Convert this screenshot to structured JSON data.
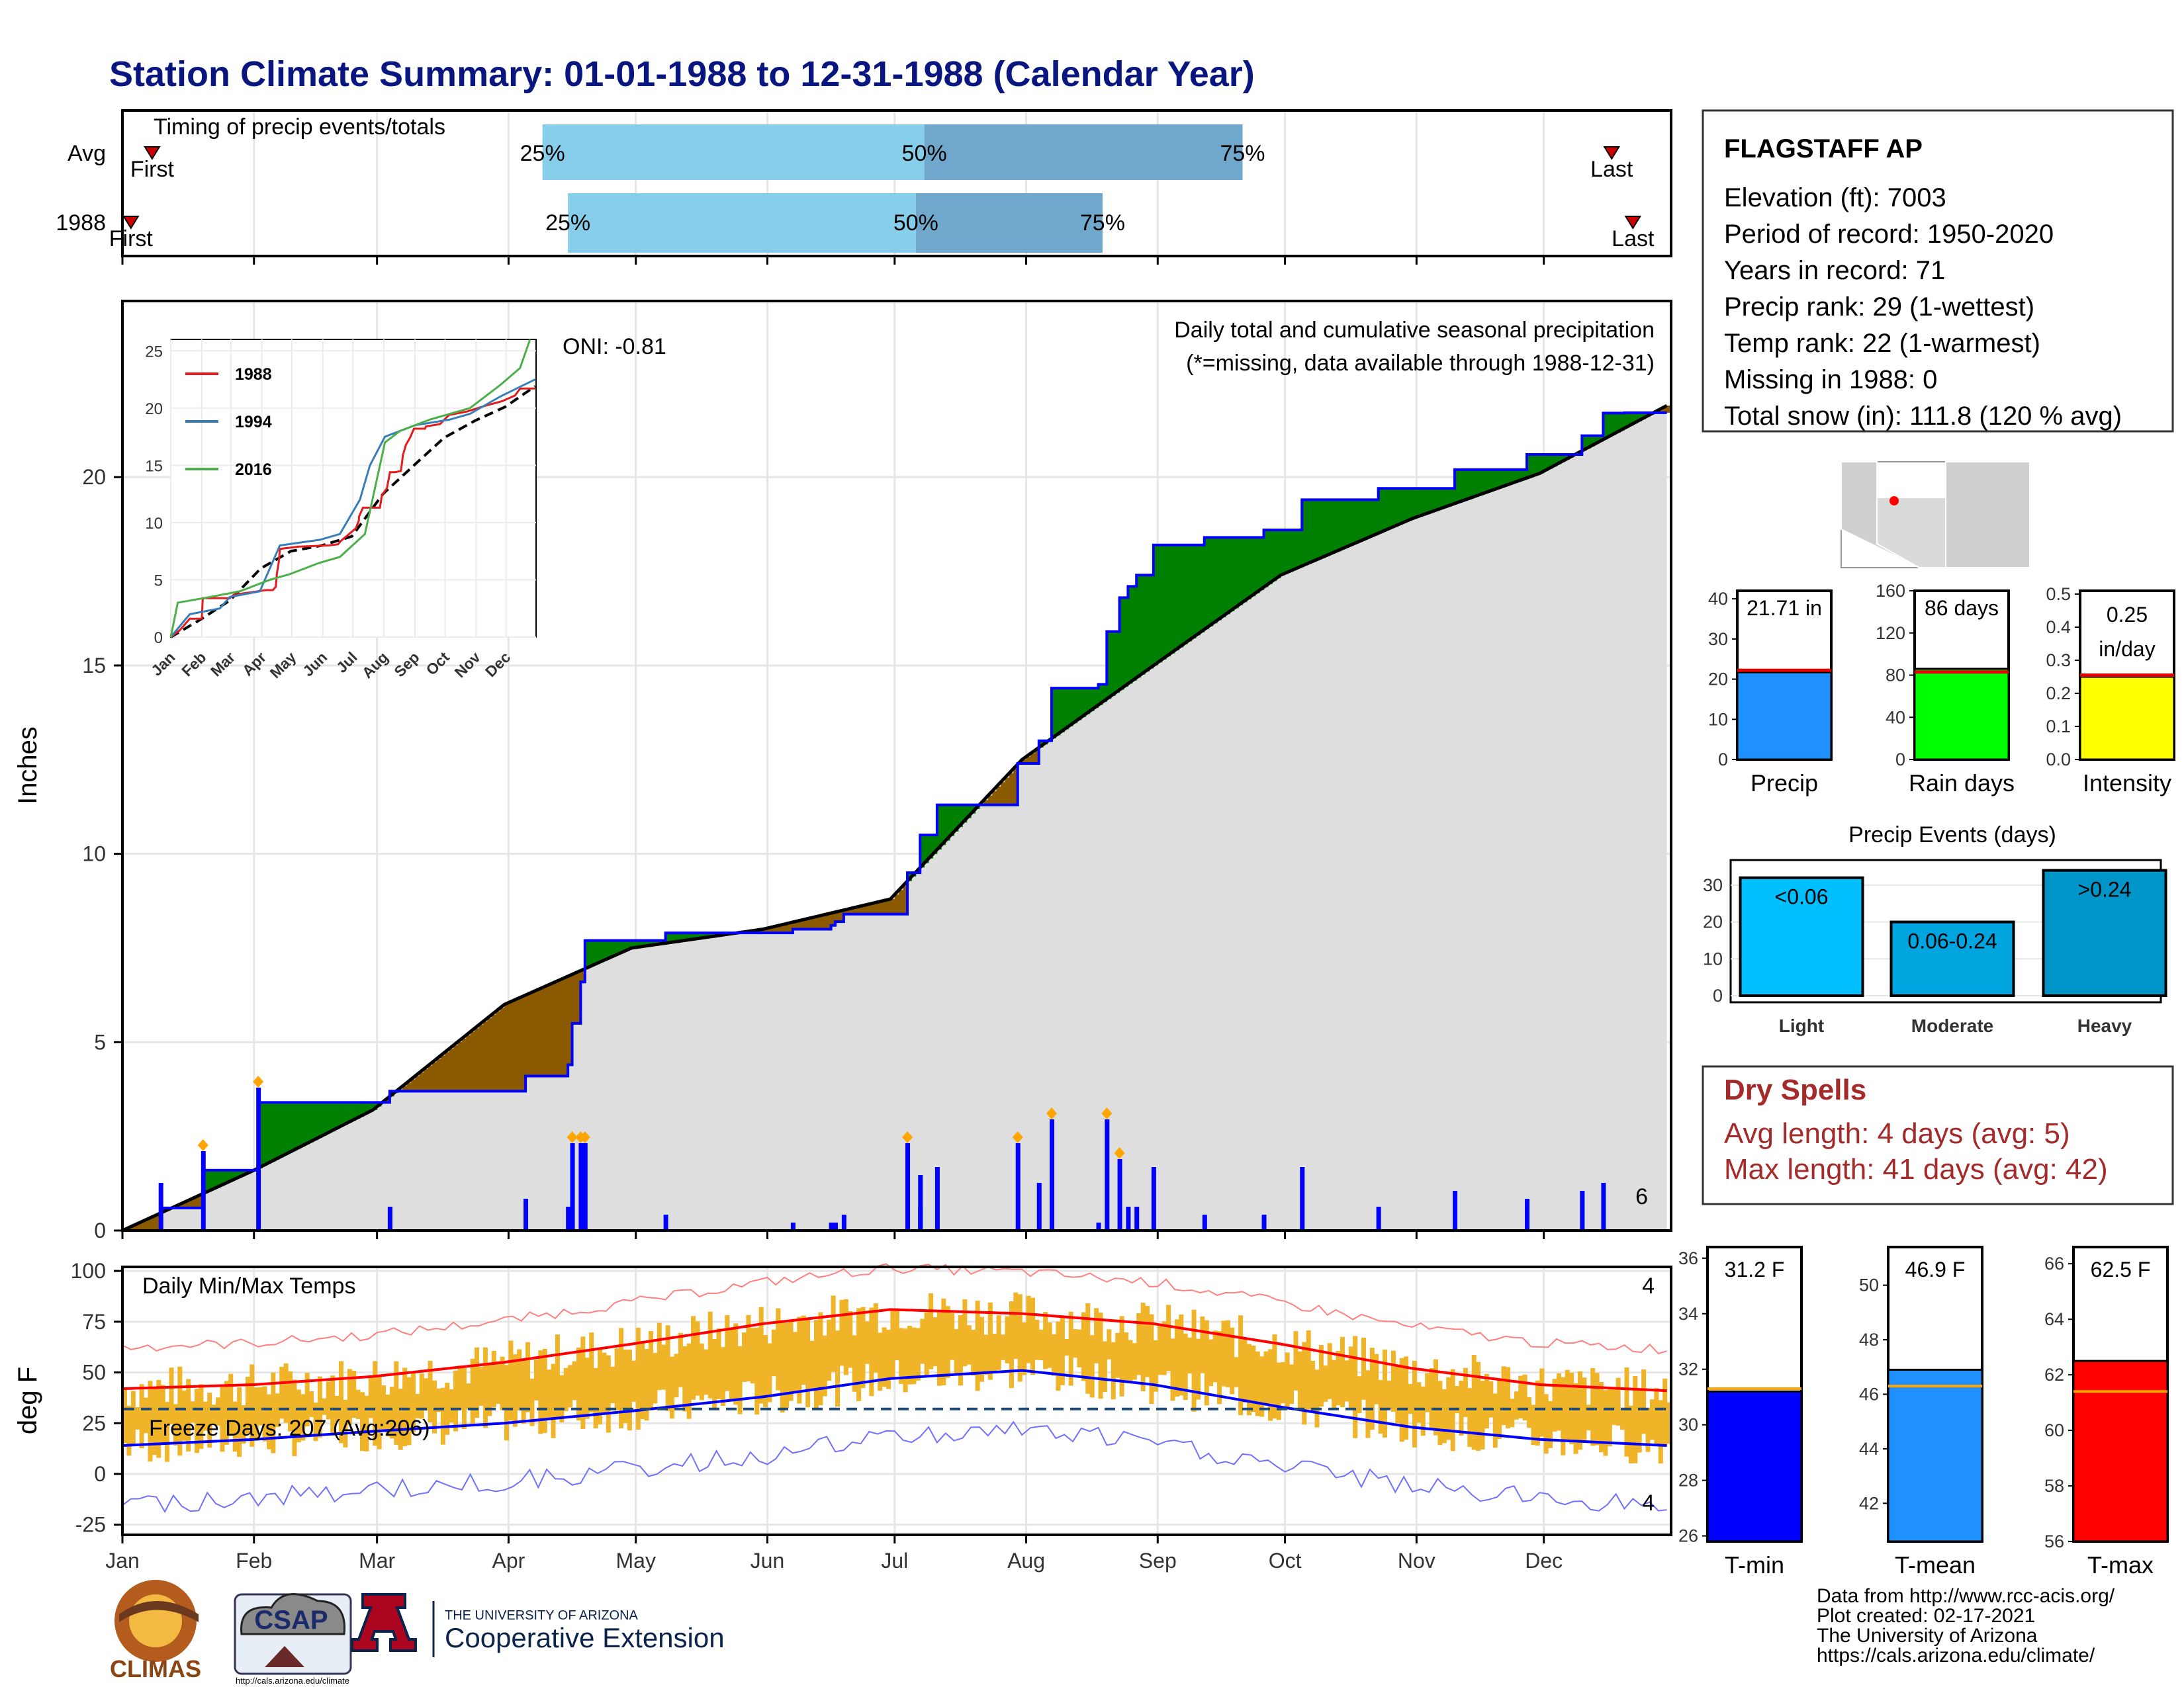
{
  "title": "Station Climate Summary: 01-01-1988 to 12-31-1988 (Calendar Year)",
  "months": [
    "Jan",
    "Feb",
    "Mar",
    "Apr",
    "May",
    "Jun",
    "Jul",
    "Aug",
    "Sep",
    "Oct",
    "Nov",
    "Dec"
  ],
  "colors": {
    "title": "#0a1680",
    "green": "#008000",
    "brown": "#8b5a00",
    "blue_line": "#0000ff",
    "gray_fill": "#dedede",
    "temp_bar": "#f0b428",
    "tmax": "#ff0000",
    "tmin": "#0000ff"
  },
  "timing": {
    "title": "Timing of precip events/totals",
    "rows": [
      {
        "label": "Avg",
        "first": "First",
        "last": "Last",
        "p25": "25%",
        "p50": "50%",
        "p75": "75%",
        "first_doy": 8,
        "p25_doy": 100,
        "p50_doy": 190,
        "p75_doy": 265,
        "last_doy": 352
      },
      {
        "label": "1988",
        "first": "First",
        "last": "Last",
        "p25": "25%",
        "p50": "50%",
        "p75": "75%",
        "first_doy": 3,
        "p25_doy": 106,
        "p50_doy": 188,
        "p75_doy": 232,
        "last_doy": 357
      }
    ]
  },
  "precip_panel": {
    "header": "Daily total and cumulative seasonal precipitation",
    "note": "(*=missing, data available through 1988-12-31)",
    "oni": "ONI: -0.81",
    "ylabel": "Inches",
    "yticks": [
      "0",
      "5",
      "10",
      "15",
      "20"
    ],
    "corner_count": "6"
  },
  "inset": {
    "yticks": [
      "0",
      "5",
      "10",
      "15",
      "20",
      "25"
    ],
    "xticks": [
      "Jan",
      "Feb",
      "Mar",
      "Apr",
      "May",
      "Jun",
      "Jul",
      "Aug",
      "Sep",
      "Oct",
      "Nov",
      "Dec"
    ],
    "legend": [
      {
        "name": "1988",
        "color": "#e41a1c"
      },
      {
        "name": "1994",
        "color": "#377eb8"
      },
      {
        "name": "2016",
        "color": "#4daf4a"
      }
    ]
  },
  "temp_panel": {
    "title": "Daily Min/Max Temps",
    "ylabel": "deg F",
    "yticks": [
      "100",
      "75",
      "50",
      "25",
      "0",
      "-25"
    ],
    "freeze": "Freeze Days: 207 (Avg:206)",
    "count_top": "4",
    "count_bottom": "4"
  },
  "station": {
    "name": "FLAGSTAFF AP",
    "lines": [
      "Elevation (ft): 7003",
      "Period of record: 1950-2020",
      "Years in record: 71",
      "Precip rank: 29 (1-wettest)",
      "Temp rank: 22 (1-warmest)",
      "Missing in 1988: 0",
      "Total snow (in): 111.8 (120 % avg)"
    ]
  },
  "mini_bars": [
    {
      "label": "Precip",
      "value_text": "21.71 in",
      "value": 21.71,
      "avg": 22.2,
      "ymax": 42,
      "ticks": [
        "40",
        "30",
        "20",
        "10",
        "0"
      ],
      "tickvals": [
        40,
        30,
        20,
        10,
        0
      ],
      "color": "#1e90ff"
    },
    {
      "label": "Rain days",
      "value_text": "86 days",
      "value": 86,
      "avg": 83,
      "ymax": 160,
      "ticks": [
        "160",
        "120",
        "80",
        "40",
        "0"
      ],
      "tickvals": [
        160,
        120,
        80,
        40,
        0
      ],
      "color": "#00ff00"
    },
    {
      "label": "Intensity",
      "value_text": "0.25 in/day",
      "value": 0.25,
      "avg": 0.255,
      "ymax": 0.51,
      "ticks": [
        "0.5",
        "0.4",
        "0.3",
        "0.2",
        "0.1",
        "0.0"
      ],
      "tickvals": [
        0.5,
        0.4,
        0.3,
        0.2,
        0.1,
        0.0
      ],
      "color": "#ffff00"
    }
  ],
  "events": {
    "title": "Precip Events (days)",
    "yticks": [
      "30",
      "20",
      "10",
      "0"
    ],
    "bars": [
      {
        "cat": "Light",
        "label": "<0.06",
        "value": 32,
        "color": "#00bfff"
      },
      {
        "cat": "Moderate",
        "label": "0.06-0.24",
        "value": 20,
        "color": "#00a5e0"
      },
      {
        "cat": "Heavy",
        "label": ">0.24",
        "value": 34,
        "color": "#0095c8"
      }
    ]
  },
  "dry_spells": {
    "title": "Dry Spells",
    "avg": "Avg length: 4 days (avg: 5)",
    "max": "Max length: 41 days (avg: 42)"
  },
  "temp_bars": [
    {
      "label": "T-min",
      "value_text": "31.2 F",
      "value": 31.2,
      "avg": 31.3,
      "ymin": 25.8,
      "ymax": 36.4,
      "ticks": [
        "36",
        "34",
        "32",
        "30",
        "28",
        "26"
      ],
      "tickvals": [
        36,
        34,
        32,
        30,
        28,
        26
      ],
      "color": "#0000ff"
    },
    {
      "label": "T-mean",
      "value_text": "46.9 F",
      "value": 46.9,
      "avg": 46.3,
      "ymin": 40.6,
      "ymax": 51.4,
      "ticks": [
        "50",
        "48",
        "46",
        "44",
        "42"
      ],
      "tickvals": [
        50,
        48,
        46,
        44,
        42
      ],
      "color": "#1e90ff"
    },
    {
      "label": "T-max",
      "value_text": "62.5 F",
      "value": 62.5,
      "avg": 61.4,
      "ymin": 56,
      "ymax": 66.6,
      "ticks": [
        "66",
        "64",
        "62",
        "60",
        "58",
        "56"
      ],
      "tickvals": [
        66,
        64,
        62,
        60,
        58,
        56
      ],
      "color": "#ff0000"
    }
  ],
  "footer": {
    "lines": [
      "Data from http://www.rcc-acis.org/",
      "Plot created: 02-17-2021",
      "The University of Arizona",
      "https://cals.arizona.edu/climate/"
    ],
    "logo_climas": "CLIMAS",
    "logo_csap": "CSAP",
    "logo_csap_url": "http://cals.arizona.edu/climate",
    "ua_small": "THE UNIVERSITY OF ARIZONA",
    "ua_big": "Cooperative Extension"
  },
  "chart_data": [
    {
      "type": "area",
      "title": "Daily total and cumulative seasonal precipitation",
      "ylabel": "Inches",
      "ylim": [
        0,
        24
      ],
      "x_unit": "day of year 1988",
      "series": [
        {
          "name": "1988",
          "x": [
            1,
            10,
            20,
            32,
            33,
            60,
            64,
            96,
            103,
            106,
            107,
            109,
            110,
            129,
            159,
            168,
            169,
            171,
            186,
            189,
            189,
            193,
            202,
            210,
            212,
            217,
            220,
            225,
            231,
            233,
            236,
            238,
            240,
            244,
            255,
            256,
            270,
            279,
            297,
            315,
            332,
            345,
            350,
            355,
            361,
            365
          ],
          "y": [
            0,
            0.6,
            1.6,
            1.6,
            3.4,
            3.4,
            3.7,
            4.1,
            4.1,
            4.4,
            5.5,
            6.6,
            7.7,
            7.9,
            8.0,
            8.1,
            8.2,
            8.4,
            9.5,
            10.2,
            10.5,
            11.3,
            11.3,
            11.3,
            12.4,
            13.0,
            14.4,
            14.4,
            14.5,
            15.9,
            16.8,
            17.1,
            17.4,
            18.2,
            18.2,
            18.4,
            18.6,
            19.4,
            19.7,
            20.2,
            20.6,
            21.1,
            21.7,
            21.71,
            21.71,
            21.71
          ]
        },
        {
          "name": "Avg",
          "x": [
            1,
            32,
            60,
            91,
            121,
            152,
            182,
            213,
            244,
            274,
            305,
            335,
            365
          ],
          "y": [
            0,
            1.6,
            3.2,
            6.0,
            7.5,
            8.0,
            8.8,
            12.5,
            15.0,
            17.4,
            18.9,
            20.1,
            21.9
          ]
        }
      ]
    },
    {
      "type": "line",
      "title": "Daily Min/Max Temps",
      "ylabel": "deg F",
      "ylim": [
        -30,
        102
      ],
      "x_unit": "day of year 1988",
      "series": [
        {
          "name": "avg max",
          "x": [
            1,
            32,
            60,
            91,
            121,
            152,
            182,
            213,
            244,
            274,
            305,
            335,
            365
          ],
          "y": [
            42,
            44,
            48,
            55,
            64,
            74,
            81,
            79,
            74,
            64,
            52,
            44,
            41
          ]
        },
        {
          "name": "avg min",
          "x": [
            1,
            32,
            60,
            91,
            121,
            152,
            182,
            213,
            244,
            274,
            305,
            335,
            365
          ],
          "y": [
            14,
            17,
            21,
            25,
            31,
            38,
            47,
            51,
            44,
            33,
            23,
            17,
            14
          ]
        }
      ],
      "freeze_line": 32
    }
  ]
}
